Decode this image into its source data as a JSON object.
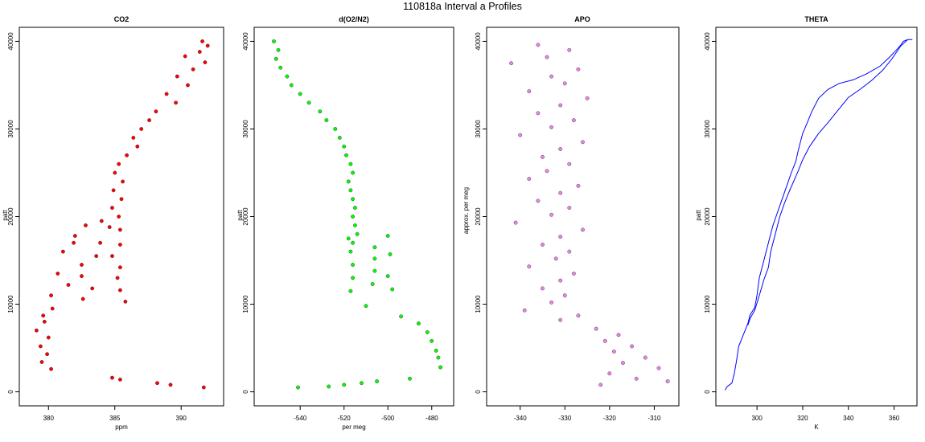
{
  "figure_title": "110818a   Interval a Profiles",
  "chart_data": [
    {
      "type": "scatter",
      "title": "CO2",
      "xlabel": "ppm",
      "ylabel": "patt",
      "xlim": [
        377.8,
        393.2
      ],
      "ylim": [
        -1600,
        41600
      ],
      "xticks": [
        "380",
        "385",
        "390"
      ],
      "yticks": [
        "0",
        "10000",
        "20000",
        "30000",
        "40000"
      ],
      "point_color": "#ff0000",
      "series": [
        {
          "x": [
            391.6,
            392.0,
            391.4,
            390.3,
            391.8,
            390.9,
            389.7,
            390.5,
            388.9,
            389.6,
            388.1,
            387.6,
            387.0,
            386.4,
            386.7,
            385.9,
            385.3,
            385.0,
            385.6,
            384.9,
            385.5,
            384.8,
            385.3,
            384.0,
            382.8,
            384.6,
            385.4,
            382.0,
            381.9,
            383.9,
            385.4,
            381.1,
            383.6,
            384.8,
            382.5,
            385.4,
            380.7,
            382.5,
            385.2,
            381.5,
            383.3,
            385.4,
            380.2,
            382.6,
            385.8,
            380.3,
            379.6,
            379.7,
            379.1,
            380.0,
            379.4,
            379.9,
            379.5,
            380.2,
            384.8,
            385.4,
            388.2,
            389.2,
            391.7
          ],
          "y": [
            40000,
            39500,
            38800,
            38300,
            37600,
            36800,
            36000,
            35000,
            34000,
            33000,
            32000,
            31000,
            30000,
            29000,
            28000,
            27000,
            26000,
            25000,
            24000,
            23000,
            22000,
            21000,
            20000,
            19500,
            19000,
            18800,
            18500,
            17800,
            17000,
            17000,
            16800,
            16000,
            15500,
            15500,
            14500,
            14200,
            13500,
            13200,
            13000,
            12200,
            11800,
            11600,
            11000,
            10600,
            10300,
            9500,
            8700,
            8000,
            7000,
            6200,
            5200,
            4300,
            3400,
            2600,
            1600,
            1400,
            1000,
            800,
            500
          ]
        }
      ]
    },
    {
      "type": "scatter",
      "title": "d(O2/N2)",
      "xlabel": "per meg",
      "ylabel": "patt",
      "xlim": [
        -561,
        -470
      ],
      "ylim": [
        -1600,
        41600
      ],
      "xticks": [
        "-540",
        "-520",
        "-500",
        "-480"
      ],
      "yticks": [
        "0",
        "10000",
        "20000",
        "30000",
        "40000"
      ],
      "point_color": "#00ff00",
      "series": [
        {
          "x": [
            -552,
            -550,
            -551,
            -549,
            -546,
            -544,
            -540,
            -536,
            -531,
            -528,
            -524,
            -522,
            -520,
            -519,
            -517,
            -516,
            -518,
            -517,
            -516,
            -515,
            -516,
            -515,
            -514,
            -518,
            -516,
            -506,
            -500,
            -517,
            -506,
            -499,
            -516,
            -506,
            -500,
            -516,
            -507,
            -498,
            -517,
            -510,
            -494,
            -486,
            -482,
            -480,
            -478,
            -477,
            -476,
            -490,
            -505,
            -512,
            -520,
            -527,
            -541
          ],
          "y": [
            40000,
            39000,
            38000,
            37000,
            36000,
            35000,
            34000,
            33000,
            32000,
            31000,
            30000,
            29000,
            28000,
            27000,
            26000,
            25000,
            24000,
            23000,
            22000,
            21000,
            20000,
            19000,
            18000,
            17500,
            17000,
            16500,
            17800,
            16000,
            15200,
            15700,
            14500,
            13800,
            13200,
            13000,
            12300,
            11700,
            11500,
            9800,
            8600,
            7800,
            6800,
            5800,
            4700,
            3900,
            2800,
            1500,
            1200,
            1000,
            800,
            600,
            500
          ]
        }
      ]
    },
    {
      "type": "scatter",
      "title": "APO",
      "xlabel": "",
      "ylabel": "approx. per meg",
      "xlim": [
        -347.5,
        -304.5
      ],
      "ylim": [
        -1600,
        41600
      ],
      "xticks": [
        "-340",
        "-330",
        "-320",
        "-310"
      ],
      "yticks": [
        "0",
        "10000",
        "20000",
        "30000",
        "40000"
      ],
      "point_color": "#ee82ee",
      "series": [
        {
          "x": [
            -336,
            -329,
            -334,
            -342,
            -327,
            -333,
            -330,
            -338,
            -325,
            -331,
            -336,
            -328,
            -333,
            -340,
            -326,
            -331,
            -335,
            -329,
            -334,
            -338,
            -327,
            -331,
            -336,
            -329,
            -333,
            -341,
            -326,
            -331,
            -335,
            -329,
            -332,
            -338,
            -328,
            -331,
            -335,
            -330,
            -333,
            -339,
            -327,
            -331,
            -323,
            -318,
            -321,
            -315,
            -319,
            -312,
            -317,
            -309,
            -320,
            -314,
            -307,
            -322
          ],
          "y": [
            39600,
            39000,
            38200,
            37500,
            36800,
            36000,
            35200,
            34300,
            33500,
            32700,
            31800,
            31000,
            30200,
            29300,
            28500,
            27700,
            26800,
            26000,
            25200,
            24300,
            23500,
            22700,
            21800,
            21000,
            20200,
            19300,
            18500,
            17700,
            16800,
            16000,
            15200,
            14300,
            13500,
            12700,
            11800,
            11000,
            10200,
            9300,
            8700,
            8200,
            7200,
            6500,
            5800,
            5200,
            4600,
            3900,
            3300,
            2700,
            2100,
            1500,
            1200,
            800
          ]
        }
      ]
    },
    {
      "type": "line",
      "title": "THETA",
      "xlabel": "K",
      "ylabel": "patt",
      "xlim": [
        282,
        370
      ],
      "ylim": [
        -1600,
        41600
      ],
      "xticks": [
        "300",
        "320",
        "340",
        "360"
      ],
      "yticks": [
        "0",
        "10000",
        "20000",
        "30000",
        "40000"
      ],
      "line_color": "#0000ff",
      "series": [
        {
          "x": [
            286,
            287,
            289,
            290,
            291,
            292,
            294,
            296,
            297,
            299,
            300,
            301,
            303,
            305,
            307,
            309,
            311,
            313,
            315,
            317,
            318,
            319,
            320,
            322,
            324,
            327,
            331,
            336,
            342,
            348,
            354,
            358,
            361,
            363,
            364,
            366,
            368
          ],
          "y": [
            200,
            600,
            1000,
            2000,
            3500,
            5200,
            6500,
            7800,
            8800,
            9600,
            11000,
            13000,
            15000,
            17000,
            19000,
            20500,
            22000,
            23500,
            25000,
            26300,
            27500,
            28500,
            29500,
            30700,
            32000,
            33500,
            34500,
            35200,
            35600,
            36300,
            37200,
            38200,
            39000,
            39600,
            40000,
            40200,
            40200
          ]
        },
        {
          "x": [
            366,
            363,
            359,
            355,
            350,
            345,
            340,
            335,
            331,
            327,
            323,
            320,
            318,
            316,
            314,
            312,
            310,
            308,
            306,
            305,
            303,
            301,
            299,
            297,
            296
          ],
          "y": [
            40200,
            39500,
            38000,
            36700,
            35500,
            34500,
            33600,
            32000,
            30700,
            29500,
            28000,
            26500,
            25200,
            24000,
            22800,
            21500,
            20000,
            18000,
            16000,
            14200,
            12800,
            11000,
            9300,
            8400,
            7600
          ]
        }
      ]
    }
  ]
}
